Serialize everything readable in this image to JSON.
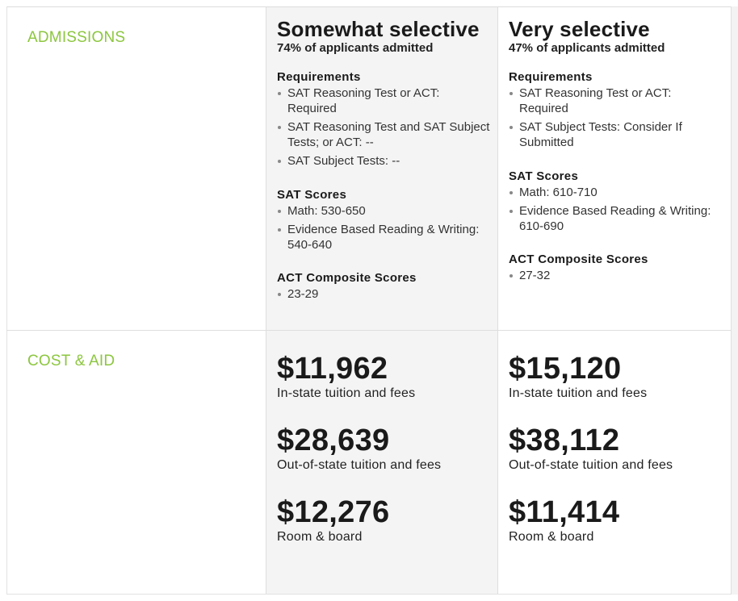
{
  "sections": {
    "admissions_label": "ADMISSIONS",
    "cost_label": "COST & AID"
  },
  "colors": {
    "section_label": "#8cc63f"
  },
  "columns": [
    {
      "title": "Somewhat selective",
      "admit_rate": "74% of applicants admitted",
      "requirements_title": "Requirements",
      "requirements": [
        "SAT Reasoning Test or ACT: Required",
        "SAT Reasoning Test and SAT Subject Tests; or ACT: --",
        "SAT Subject Tests: --"
      ],
      "sat_title": "SAT Scores",
      "sat": [
        "Math: 530-650",
        "Evidence Based Reading & Writing: 540-640"
      ],
      "act_title": "ACT Composite Scores",
      "act": [
        "23-29"
      ],
      "costs": [
        {
          "amount": "$11,962",
          "label": "In-state tuition and fees"
        },
        {
          "amount": "$28,639",
          "label": "Out-of-state tuition and fees"
        },
        {
          "amount": "$12,276",
          "label": "Room & board"
        }
      ]
    },
    {
      "title": "Very selective",
      "admit_rate": "47% of applicants admitted",
      "requirements_title": "Requirements",
      "requirements": [
        "SAT Reasoning Test or ACT: Required",
        "SAT Subject Tests: Consider If Submitted"
      ],
      "sat_title": "SAT Scores",
      "sat": [
        "Math: 610-710",
        "Evidence Based Reading & Writing: 610-690"
      ],
      "act_title": "ACT Composite Scores",
      "act": [
        "27-32"
      ],
      "costs": [
        {
          "amount": "$15,120",
          "label": "In-state tuition and fees"
        },
        {
          "amount": "$38,112",
          "label": "Out-of-state tuition and fees"
        },
        {
          "amount": "$11,414",
          "label": "Room & board"
        }
      ]
    }
  ]
}
